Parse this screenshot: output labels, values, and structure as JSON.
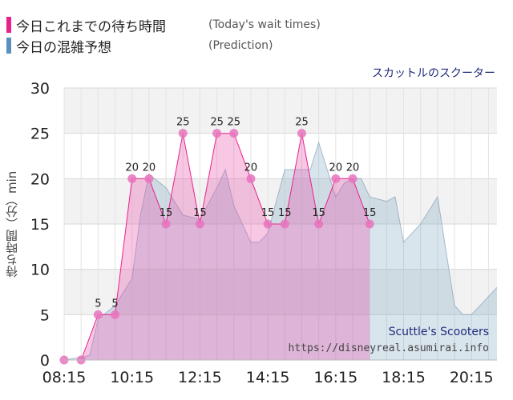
{
  "legend": {
    "today": {
      "label": "今日これまでの待ち時間",
      "note": "(Today's wait times)",
      "color": "#e8228a"
    },
    "prediction": {
      "label": "今日の混雑予想",
      "note": "(Prediction)",
      "color": "#5a8fc0"
    }
  },
  "attraction_name": "スカットルのスクーター",
  "watermark": {
    "name_en": "Scuttle's Scooters",
    "url": "https://disneyreal.asumirai.info"
  },
  "chart_data": {
    "type": "area",
    "ylabel": "待ち時間（分）min",
    "ylim": [
      0,
      30
    ],
    "yticks": [
      0,
      5,
      10,
      15,
      20,
      25,
      30
    ],
    "xlim": [
      "08:15",
      "21:00"
    ],
    "xticks": [
      "08:15",
      "10:15",
      "12:15",
      "14:15",
      "16:15",
      "18:15",
      "20:15"
    ],
    "series": [
      {
        "name": "今日これまでの待ち時間",
        "x": [
          "08:15",
          "08:45",
          "09:15",
          "09:45",
          "10:15",
          "10:45",
          "11:15",
          "11:45",
          "12:15",
          "12:45",
          "13:15",
          "13:45",
          "14:15",
          "14:45",
          "15:15",
          "15:45",
          "16:15",
          "16:45",
          "17:15"
        ],
        "values": [
          0,
          0,
          5,
          5,
          20,
          20,
          15,
          25,
          15,
          25,
          25,
          20,
          15,
          15,
          25,
          15,
          20,
          20,
          15
        ]
      },
      {
        "name": "今日の混雑予想",
        "x": [
          "08:15",
          "08:45",
          "09:00",
          "09:15",
          "09:45",
          "10:15",
          "10:30",
          "10:45",
          "11:15",
          "11:30",
          "11:45",
          "12:15",
          "12:45",
          "13:00",
          "13:15",
          "13:45",
          "14:00",
          "14:15",
          "14:45",
          "15:00",
          "15:15",
          "15:30",
          "15:45",
          "16:15",
          "16:30",
          "16:45",
          "17:00",
          "17:15",
          "17:45",
          "18:00",
          "18:15",
          "18:45",
          "19:15",
          "19:45",
          "20:00",
          "20:15",
          "20:45",
          "21:00"
        ],
        "values": [
          0,
          0.3,
          0.5,
          4.5,
          6,
          9,
          16,
          20.5,
          19,
          17.5,
          16,
          15.5,
          19,
          21,
          17,
          13,
          13,
          14,
          21,
          21,
          21,
          21,
          24,
          18,
          19.5,
          20,
          20,
          18,
          17.5,
          18,
          13,
          15,
          18,
          6,
          5,
          5,
          7,
          8
        ]
      }
    ]
  }
}
